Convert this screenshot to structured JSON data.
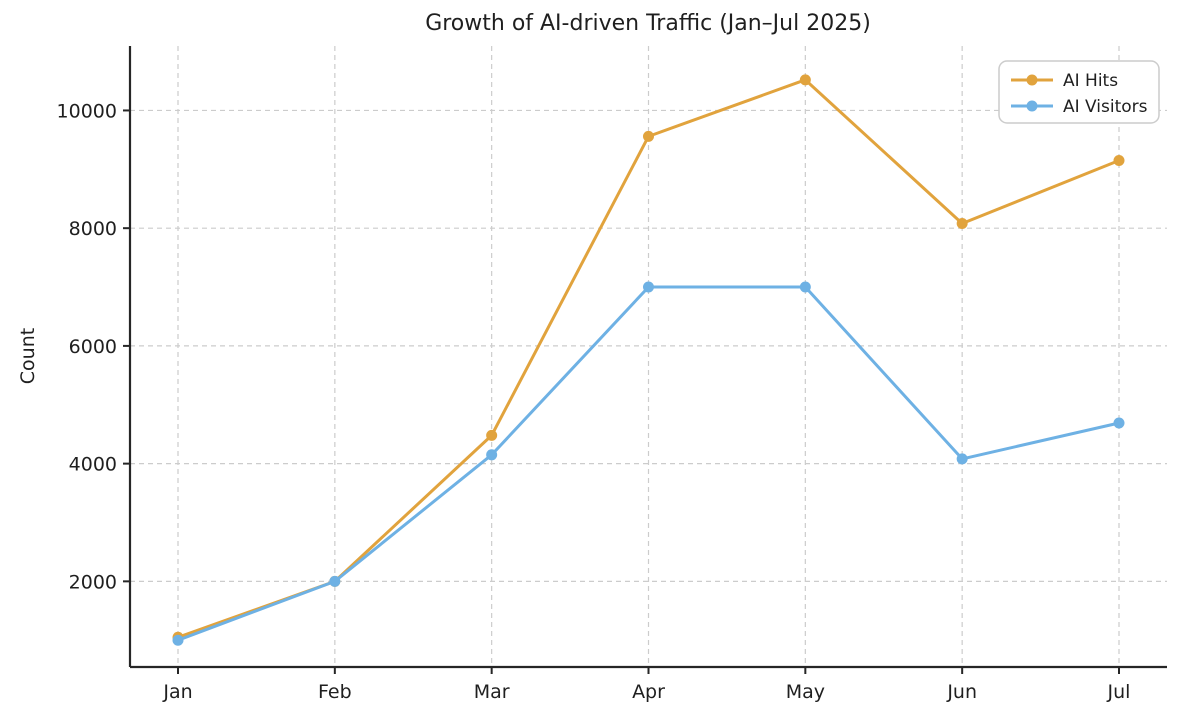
{
  "chart_data": {
    "type": "line",
    "title": "Growth of AI-driven Traffic (Jan–Jul 2025)",
    "xlabel": "",
    "ylabel": "Count",
    "categories": [
      "Jan",
      "Feb",
      "Mar",
      "Apr",
      "May",
      "Jun",
      "Jul"
    ],
    "series": [
      {
        "name": "AI Hits",
        "color": "#E1A33D",
        "values": [
          1050,
          2000,
          4480,
          9560,
          10520,
          8080,
          9150
        ]
      },
      {
        "name": "AI Visitors",
        "color": "#6EB1E4",
        "values": [
          1000,
          2000,
          4150,
          7000,
          7000,
          4080,
          4690
        ]
      }
    ],
    "yticks": [
      2000,
      4000,
      6000,
      8000,
      10000
    ],
    "ylim": [
      545,
      11095
    ],
    "grid": true,
    "grid_style": "dashed",
    "legend_position": "upper right",
    "marker": "circle",
    "line_width": 3
  },
  "colors": {
    "background": "#ffffff",
    "grid": "#cccccc",
    "spine": "#262626",
    "text": "#1f1f1f",
    "legend_border": "#cccccc",
    "legend_background": "#ffffff"
  }
}
